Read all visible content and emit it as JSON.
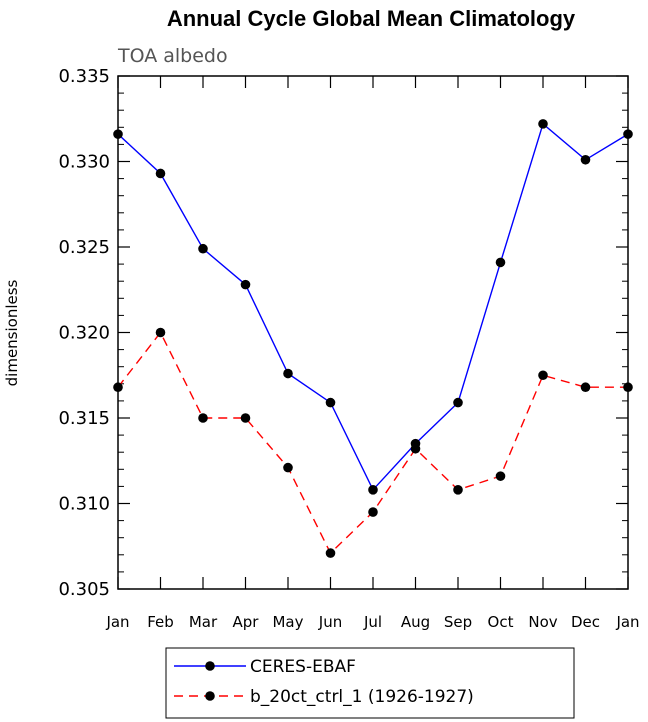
{
  "chart_data": {
    "type": "line",
    "title": "Annual Cycle Global Mean Climatology",
    "subtitle": "TOA albedo",
    "ylabel": "dimensionless",
    "xlabel": "",
    "categories": [
      "Jan",
      "Feb",
      "Mar",
      "Apr",
      "May",
      "Jun",
      "Jul",
      "Aug",
      "Sep",
      "Oct",
      "Nov",
      "Dec",
      "Jan"
    ],
    "ylim": [
      0.305,
      0.335
    ],
    "yticks": [
      "0.305",
      "0.310",
      "0.315",
      "0.320",
      "0.325",
      "0.330",
      "0.335"
    ],
    "grid": false,
    "legend_position": "bottom",
    "series": [
      {
        "name": "CERES-EBAF",
        "color": "#0000ff",
        "dash": "solid",
        "marker": "filled-circle",
        "values": [
          0.3316,
          0.3293,
          0.3249,
          0.3228,
          0.3176,
          0.3159,
          0.3108,
          0.3135,
          0.3159,
          0.3241,
          0.3322,
          0.3301,
          0.3316
        ]
      },
      {
        "name": "b_20ct_ctrl_1 (1926-1927)",
        "color": "#ff0000",
        "dash": "dashed",
        "marker": "filled-circle",
        "values": [
          0.3168,
          0.32,
          0.315,
          0.315,
          0.3121,
          0.3071,
          0.3095,
          0.3132,
          0.3108,
          0.3116,
          0.3175,
          0.3168,
          0.3168
        ]
      }
    ]
  }
}
